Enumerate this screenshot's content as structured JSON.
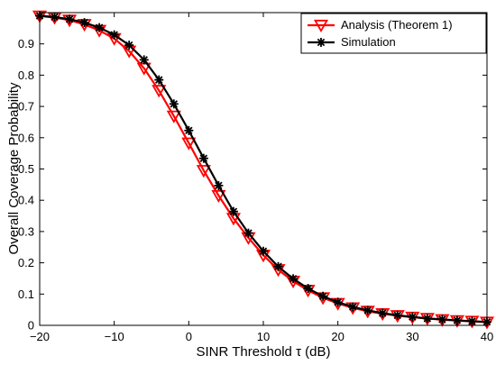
{
  "chart_data": {
    "type": "line",
    "title": "",
    "xlabel": "SINR Threshold τ (dB)",
    "ylabel": "Overall Coverage Probability",
    "xlim": [
      -20,
      40
    ],
    "ylim": [
      0,
      1
    ],
    "xticks": [
      -20,
      -10,
      0,
      10,
      20,
      30,
      40
    ],
    "yticks": [
      0,
      0.1,
      0.2,
      0.3,
      0.4,
      0.5,
      0.6,
      0.7,
      0.8,
      0.9
    ],
    "xtick_labels": [
      "−20",
      "−10",
      "0",
      "10",
      "20",
      "30",
      "40"
    ],
    "ytick_labels": [
      "0",
      "0.1",
      "0.2",
      "0.3",
      "0.4",
      "0.5",
      "0.6",
      "0.7",
      "0.8",
      "0.9"
    ],
    "grid": false,
    "legend_position": "top-right",
    "x": [
      -20,
      -18,
      -16,
      -14,
      -12,
      -10,
      -8,
      -6,
      -4,
      -2,
      0,
      2,
      4,
      6,
      8,
      10,
      12,
      14,
      16,
      18,
      20,
      22,
      24,
      26,
      28,
      30,
      32,
      34,
      36,
      38,
      40
    ],
    "series": [
      {
        "name": "Analysis (Theorem 1)",
        "color": "#ff0000",
        "marker": "triangle-down",
        "values": [
          0.989,
          0.984,
          0.976,
          0.962,
          0.943,
          0.917,
          0.877,
          0.822,
          0.751,
          0.669,
          0.583,
          0.495,
          0.415,
          0.342,
          0.28,
          0.224,
          0.178,
          0.141,
          0.112,
          0.088,
          0.07,
          0.056,
          0.045,
          0.037,
          0.031,
          0.026,
          0.022,
          0.018,
          0.015,
          0.013,
          0.01
        ]
      },
      {
        "name": "Simulation",
        "color": "#000000",
        "marker": "asterisk",
        "values": [
          0.99,
          0.986,
          0.979,
          0.968,
          0.952,
          0.929,
          0.896,
          0.849,
          0.785,
          0.708,
          0.623,
          0.534,
          0.447,
          0.364,
          0.295,
          0.237,
          0.188,
          0.149,
          0.118,
          0.093,
          0.074,
          0.059,
          0.048,
          0.039,
          0.032,
          0.027,
          0.022,
          0.019,
          0.016,
          0.013,
          0.011
        ]
      }
    ]
  }
}
